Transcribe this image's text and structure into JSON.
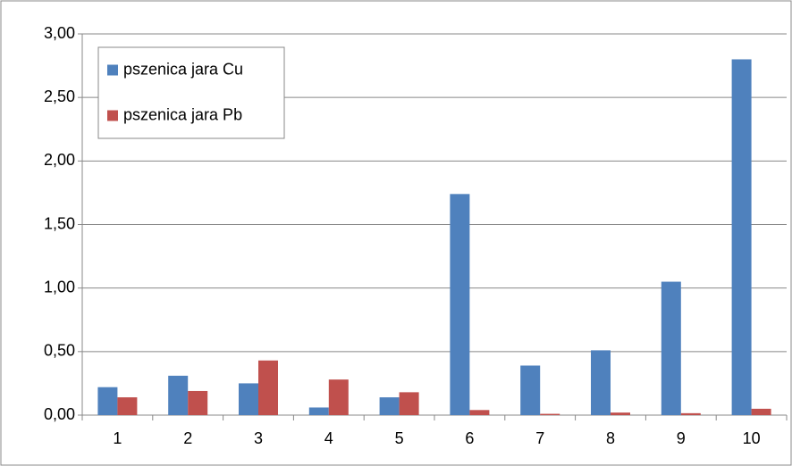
{
  "chart_data": {
    "type": "bar",
    "categories": [
      "1",
      "2",
      "3",
      "4",
      "5",
      "6",
      "7",
      "8",
      "9",
      "10"
    ],
    "series": [
      {
        "name": "pszenica jara Cu",
        "color": "#4f81bd",
        "values": [
          0.22,
          0.31,
          0.25,
          0.06,
          0.14,
          1.74,
          0.39,
          0.51,
          1.05,
          2.8
        ]
      },
      {
        "name": "pszenica jara Pb",
        "color": "#c0504d",
        "values": [
          0.14,
          0.19,
          0.43,
          0.28,
          0.18,
          0.04,
          0.01,
          0.02,
          0.015,
          0.05
        ]
      }
    ],
    "ylim": [
      0,
      3
    ],
    "yticks": [
      {
        "value": 0,
        "label": "0,00"
      },
      {
        "value": 0.5,
        "label": "0,50"
      },
      {
        "value": 1,
        "label": "1,00"
      },
      {
        "value": 1.5,
        "label": "1,50"
      },
      {
        "value": 2,
        "label": "2,00"
      },
      {
        "value": 2.5,
        "label": "2,50"
      },
      {
        "value": 3,
        "label": "3,00"
      }
    ],
    "grid": true,
    "legend": "top-left"
  }
}
